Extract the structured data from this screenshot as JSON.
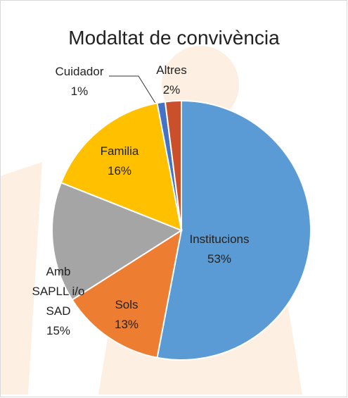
{
  "chart_data": {
    "type": "pie",
    "title": "Modaltat de convivència",
    "categories": [
      "Institucions",
      "Sols",
      "Amb SAPLL i/o SAD",
      "Familia",
      "Cuidador",
      "Altres"
    ],
    "values": [
      53,
      13,
      15,
      16,
      1,
      2
    ],
    "value_labels": [
      "53%",
      "13%",
      "15%",
      "16%",
      "1%",
      "2%"
    ],
    "colors": [
      "#5b9bd5",
      "#ed7d31",
      "#a5a5a5",
      "#ffc000",
      "#4472c4",
      "#c9502a"
    ]
  }
}
